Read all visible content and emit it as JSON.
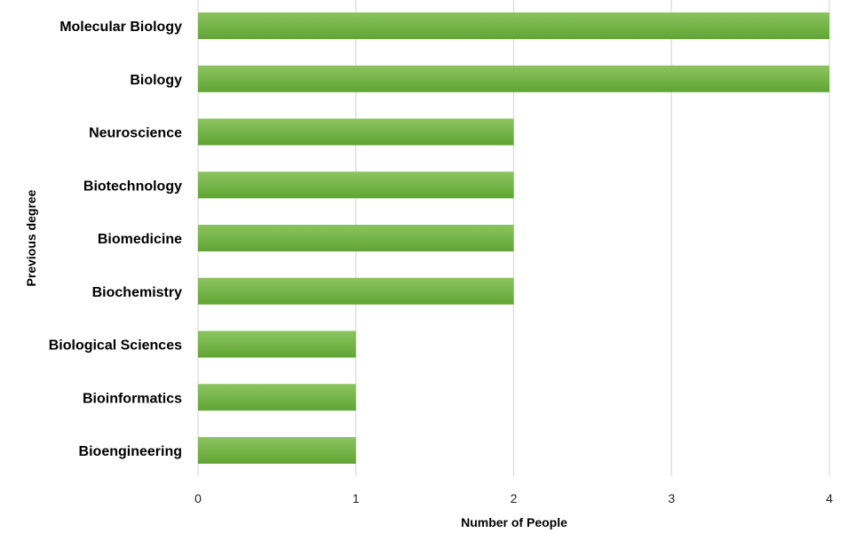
{
  "chart_data": {
    "type": "bar",
    "orientation": "horizontal",
    "categories": [
      "Molecular Biology",
      "Biology",
      "Neuroscience",
      "Biotechnology",
      "Biomedicine",
      "Biochemistry",
      "Biological Sciences",
      "Bioinformatics",
      "Bioengineering"
    ],
    "values": [
      4,
      4,
      2,
      2,
      2,
      2,
      1,
      1,
      1
    ],
    "xlabel": "Number of People",
    "ylabel": "Previous degree",
    "xlim": [
      0,
      4
    ],
    "xticks": [
      "0",
      "1",
      "2",
      "3",
      "4"
    ],
    "grid": "vertical",
    "legend": "none",
    "colors": {
      "bar_top": "#8cc460",
      "bar_bottom": "#5fa533",
      "grid": "#d9d9d9"
    }
  }
}
